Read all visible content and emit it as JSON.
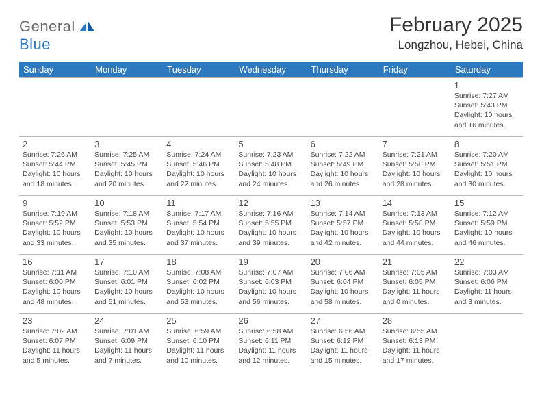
{
  "logo": {
    "word1": "General",
    "word2": "Blue"
  },
  "title": "February 2025",
  "location": "Longzhou, Hebei, China",
  "colors": {
    "header_bg": "#2d79bf",
    "header_fg": "#ffffff",
    "page_bg": "#ffffff",
    "text": "#333333",
    "cell_border": "#b8b8b8",
    "logo_gray": "#6b6b6b",
    "logo_blue": "#2d79bf"
  },
  "weekdays": [
    "Sunday",
    "Monday",
    "Tuesday",
    "Wednesday",
    "Thursday",
    "Friday",
    "Saturday"
  ],
  "weeks": [
    [
      null,
      null,
      null,
      null,
      null,
      null,
      {
        "n": "1",
        "sr": "Sunrise: 7:27 AM",
        "ss": "Sunset: 5:43 PM",
        "dl1": "Daylight: 10 hours",
        "dl2": "and 16 minutes."
      }
    ],
    [
      {
        "n": "2",
        "sr": "Sunrise: 7:26 AM",
        "ss": "Sunset: 5:44 PM",
        "dl1": "Daylight: 10 hours",
        "dl2": "and 18 minutes."
      },
      {
        "n": "3",
        "sr": "Sunrise: 7:25 AM",
        "ss": "Sunset: 5:45 PM",
        "dl1": "Daylight: 10 hours",
        "dl2": "and 20 minutes."
      },
      {
        "n": "4",
        "sr": "Sunrise: 7:24 AM",
        "ss": "Sunset: 5:46 PM",
        "dl1": "Daylight: 10 hours",
        "dl2": "and 22 minutes."
      },
      {
        "n": "5",
        "sr": "Sunrise: 7:23 AM",
        "ss": "Sunset: 5:48 PM",
        "dl1": "Daylight: 10 hours",
        "dl2": "and 24 minutes."
      },
      {
        "n": "6",
        "sr": "Sunrise: 7:22 AM",
        "ss": "Sunset: 5:49 PM",
        "dl1": "Daylight: 10 hours",
        "dl2": "and 26 minutes."
      },
      {
        "n": "7",
        "sr": "Sunrise: 7:21 AM",
        "ss": "Sunset: 5:50 PM",
        "dl1": "Daylight: 10 hours",
        "dl2": "and 28 minutes."
      },
      {
        "n": "8",
        "sr": "Sunrise: 7:20 AM",
        "ss": "Sunset: 5:51 PM",
        "dl1": "Daylight: 10 hours",
        "dl2": "and 30 minutes."
      }
    ],
    [
      {
        "n": "9",
        "sr": "Sunrise: 7:19 AM",
        "ss": "Sunset: 5:52 PM",
        "dl1": "Daylight: 10 hours",
        "dl2": "and 33 minutes."
      },
      {
        "n": "10",
        "sr": "Sunrise: 7:18 AM",
        "ss": "Sunset: 5:53 PM",
        "dl1": "Daylight: 10 hours",
        "dl2": "and 35 minutes."
      },
      {
        "n": "11",
        "sr": "Sunrise: 7:17 AM",
        "ss": "Sunset: 5:54 PM",
        "dl1": "Daylight: 10 hours",
        "dl2": "and 37 minutes."
      },
      {
        "n": "12",
        "sr": "Sunrise: 7:16 AM",
        "ss": "Sunset: 5:55 PM",
        "dl1": "Daylight: 10 hours",
        "dl2": "and 39 minutes."
      },
      {
        "n": "13",
        "sr": "Sunrise: 7:14 AM",
        "ss": "Sunset: 5:57 PM",
        "dl1": "Daylight: 10 hours",
        "dl2": "and 42 minutes."
      },
      {
        "n": "14",
        "sr": "Sunrise: 7:13 AM",
        "ss": "Sunset: 5:58 PM",
        "dl1": "Daylight: 10 hours",
        "dl2": "and 44 minutes."
      },
      {
        "n": "15",
        "sr": "Sunrise: 7:12 AM",
        "ss": "Sunset: 5:59 PM",
        "dl1": "Daylight: 10 hours",
        "dl2": "and 46 minutes."
      }
    ],
    [
      {
        "n": "16",
        "sr": "Sunrise: 7:11 AM",
        "ss": "Sunset: 6:00 PM",
        "dl1": "Daylight: 10 hours",
        "dl2": "and 48 minutes."
      },
      {
        "n": "17",
        "sr": "Sunrise: 7:10 AM",
        "ss": "Sunset: 6:01 PM",
        "dl1": "Daylight: 10 hours",
        "dl2": "and 51 minutes."
      },
      {
        "n": "18",
        "sr": "Sunrise: 7:08 AM",
        "ss": "Sunset: 6:02 PM",
        "dl1": "Daylight: 10 hours",
        "dl2": "and 53 minutes."
      },
      {
        "n": "19",
        "sr": "Sunrise: 7:07 AM",
        "ss": "Sunset: 6:03 PM",
        "dl1": "Daylight: 10 hours",
        "dl2": "and 56 minutes."
      },
      {
        "n": "20",
        "sr": "Sunrise: 7:06 AM",
        "ss": "Sunset: 6:04 PM",
        "dl1": "Daylight: 10 hours",
        "dl2": "and 58 minutes."
      },
      {
        "n": "21",
        "sr": "Sunrise: 7:05 AM",
        "ss": "Sunset: 6:05 PM",
        "dl1": "Daylight: 11 hours",
        "dl2": "and 0 minutes."
      },
      {
        "n": "22",
        "sr": "Sunrise: 7:03 AM",
        "ss": "Sunset: 6:06 PM",
        "dl1": "Daylight: 11 hours",
        "dl2": "and 3 minutes."
      }
    ],
    [
      {
        "n": "23",
        "sr": "Sunrise: 7:02 AM",
        "ss": "Sunset: 6:07 PM",
        "dl1": "Daylight: 11 hours",
        "dl2": "and 5 minutes."
      },
      {
        "n": "24",
        "sr": "Sunrise: 7:01 AM",
        "ss": "Sunset: 6:09 PM",
        "dl1": "Daylight: 11 hours",
        "dl2": "and 7 minutes."
      },
      {
        "n": "25",
        "sr": "Sunrise: 6:59 AM",
        "ss": "Sunset: 6:10 PM",
        "dl1": "Daylight: 11 hours",
        "dl2": "and 10 minutes."
      },
      {
        "n": "26",
        "sr": "Sunrise: 6:58 AM",
        "ss": "Sunset: 6:11 PM",
        "dl1": "Daylight: 11 hours",
        "dl2": "and 12 minutes."
      },
      {
        "n": "27",
        "sr": "Sunrise: 6:56 AM",
        "ss": "Sunset: 6:12 PM",
        "dl1": "Daylight: 11 hours",
        "dl2": "and 15 minutes."
      },
      {
        "n": "28",
        "sr": "Sunrise: 6:55 AM",
        "ss": "Sunset: 6:13 PM",
        "dl1": "Daylight: 11 hours",
        "dl2": "and 17 minutes."
      },
      null
    ]
  ]
}
